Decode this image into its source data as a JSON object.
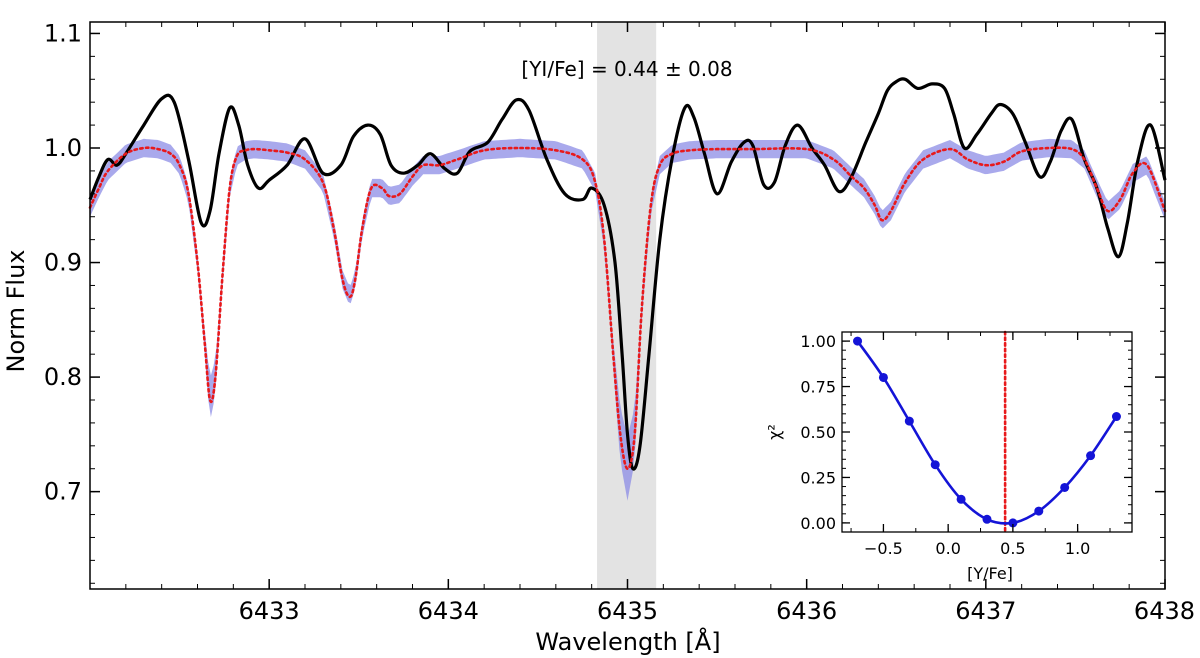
{
  "chart_data": [
    {
      "type": "line",
      "title": "",
      "xlabel": "Wavelength [Å]",
      "ylabel": "Norm Flux",
      "xlim": [
        6432.0,
        6438.0
      ],
      "ylim": [
        0.615,
        1.11
      ],
      "xticks": [
        6433,
        6434,
        6435,
        6436,
        6437,
        6438
      ],
      "xtick_labels": [
        "6433",
        "6434",
        "6435",
        "6436",
        "6437",
        "6438"
      ],
      "yticks": [
        0.7,
        0.8,
        0.9,
        1.0,
        1.1
      ],
      "ytick_labels": [
        "0.7",
        "0.8",
        "0.9",
        "1.0",
        "1.1"
      ],
      "annotation": "[YI/Fe] = 0.44 ± 0.08",
      "highlight_region": {
        "x_start": 6434.83,
        "x_end": 6435.16
      },
      "colors": {
        "observed": "#000000",
        "model": "#e8191b",
        "band": "#8c8ce6",
        "region": "#e3e3e3"
      },
      "series": [
        {
          "name": "observed spectrum",
          "style": "solid-black",
          "x": [
            6432.0,
            6432.05,
            6432.1,
            6432.15,
            6432.2,
            6432.3,
            6432.4,
            6432.47,
            6432.55,
            6432.62,
            6432.67,
            6432.72,
            6432.78,
            6432.83,
            6432.88,
            6432.94,
            6433.0,
            6433.1,
            6433.2,
            6433.3,
            6433.4,
            6433.47,
            6433.55,
            6433.62,
            6433.68,
            6433.75,
            6433.83,
            6433.9,
            6433.98,
            6434.05,
            6434.12,
            6434.22,
            6434.3,
            6434.38,
            6434.45,
            6434.55,
            6434.65,
            6434.75,
            6434.8,
            6434.87,
            6434.93,
            6434.97,
            6435.0,
            6435.03,
            6435.07,
            6435.12,
            6435.18,
            6435.25,
            6435.32,
            6435.37,
            6435.43,
            6435.5,
            6435.58,
            6435.65,
            6435.7,
            6435.76,
            6435.82,
            6435.88,
            6435.95,
            6436.03,
            6436.1,
            6436.18,
            6436.25,
            6436.33,
            6436.4,
            6436.45,
            6436.5,
            6436.55,
            6436.62,
            6436.7,
            6436.77,
            6436.82,
            6436.88,
            6436.95,
            6437.03,
            6437.08,
            6437.15,
            6437.22,
            6437.3,
            6437.36,
            6437.42,
            6437.48,
            6437.55,
            6437.62,
            6437.68,
            6437.74,
            6437.79,
            6437.85,
            6437.92,
            6438.0
          ],
          "y": [
            0.955,
            0.975,
            0.99,
            0.985,
            0.995,
            1.02,
            1.043,
            1.04,
            0.99,
            0.935,
            0.945,
            0.995,
            1.035,
            1.02,
            0.985,
            0.965,
            0.972,
            0.985,
            1.008,
            0.978,
            0.985,
            1.01,
            1.02,
            1.012,
            0.985,
            0.978,
            0.985,
            0.995,
            0.982,
            0.978,
            0.997,
            1.005,
            1.025,
            1.042,
            1.033,
            0.99,
            0.96,
            0.955,
            0.965,
            0.95,
            0.9,
            0.82,
            0.75,
            0.72,
            0.74,
            0.82,
            0.92,
            0.992,
            1.035,
            1.027,
            0.995,
            0.96,
            0.988,
            1.005,
            1.002,
            0.968,
            0.97,
            1.002,
            1.02,
            1.0,
            0.985,
            0.962,
            0.975,
            1.005,
            1.03,
            1.05,
            1.058,
            1.06,
            1.052,
            1.056,
            1.052,
            1.03,
            1.0,
            1.012,
            1.03,
            1.038,
            1.03,
            1.005,
            0.975,
            0.988,
            1.015,
            1.025,
            0.99,
            0.965,
            0.93,
            0.905,
            0.935,
            0.99,
            1.02,
            0.972
          ]
        },
        {
          "name": "best-fit synthesis",
          "style": "dotted-red",
          "x": [
            6432.0,
            6432.05,
            6432.1,
            6432.2,
            6432.3,
            6432.38,
            6432.45,
            6432.5,
            6432.55,
            6432.6,
            6432.64,
            6432.67,
            6432.7,
            6432.74,
            6432.78,
            6432.82,
            6432.87,
            6432.92,
            6433.0,
            6433.1,
            6433.2,
            6433.3,
            6433.36,
            6433.41,
            6433.45,
            6433.48,
            6433.52,
            6433.57,
            6433.63,
            6433.67,
            6433.73,
            6433.8,
            6433.86,
            6433.95,
            6434.05,
            6434.2,
            6434.4,
            6434.6,
            6434.75,
            6434.82,
            6434.87,
            6434.92,
            6434.96,
            6435.0,
            6435.04,
            6435.08,
            6435.13,
            6435.18,
            6435.25,
            6435.35,
            6435.5,
            6435.7,
            6436.0,
            6436.15,
            6436.25,
            6436.32,
            6436.38,
            6436.42,
            6436.47,
            6436.55,
            6436.65,
            6436.8,
            6436.9,
            6437.0,
            6437.1,
            6437.2,
            6437.35,
            6437.48,
            6437.55,
            6437.62,
            6437.68,
            6437.75,
            6437.82,
            6437.9,
            6438.0
          ],
          "y": [
            0.948,
            0.965,
            0.98,
            0.995,
            1.0,
            0.999,
            0.995,
            0.985,
            0.96,
            0.9,
            0.83,
            0.78,
            0.8,
            0.89,
            0.965,
            0.993,
            0.998,
            0.999,
            0.998,
            0.996,
            0.99,
            0.97,
            0.93,
            0.885,
            0.87,
            0.885,
            0.93,
            0.965,
            0.965,
            0.958,
            0.96,
            0.975,
            0.985,
            0.985,
            0.99,
            0.998,
            1.0,
            0.998,
            0.99,
            0.97,
            0.92,
            0.82,
            0.75,
            0.72,
            0.75,
            0.86,
            0.95,
            0.985,
            0.995,
            0.998,
            0.999,
            0.999,
            0.999,
            0.99,
            0.975,
            0.965,
            0.95,
            0.937,
            0.945,
            0.97,
            0.99,
            0.999,
            0.99,
            0.985,
            0.988,
            0.997,
            1.0,
            0.999,
            0.99,
            0.965,
            0.945,
            0.955,
            0.978,
            0.985,
            0.945
          ]
        }
      ],
      "uncertainty_band": {
        "name": "synthesis uncertainty",
        "half_width": 0.008,
        "core_half_width": 0.028
      }
    },
    {
      "type": "line",
      "inset": true,
      "title": "",
      "xlabel": "[Y/Fe]",
      "ylabel": "χ²",
      "xlim": [
        -0.82,
        1.42
      ],
      "ylim": [
        -0.05,
        1.05
      ],
      "xticks": [
        -0.5,
        0.0,
        0.5,
        1.0
      ],
      "xtick_labels": [
        "−0.5",
        "0.0",
        "0.5",
        "1.0"
      ],
      "yticks": [
        0.0,
        0.25,
        0.5,
        0.75,
        1.0
      ],
      "ytick_labels": [
        "0.00",
        "0.25",
        "0.50",
        "0.75",
        "1.00"
      ],
      "best_fit_line": 0.44,
      "colors": {
        "curve": "#1414d7",
        "marker": "#1414d7",
        "best_fit": "#e8191b"
      },
      "series": [
        {
          "name": "chi2",
          "x": [
            -0.7,
            -0.5,
            -0.3,
            -0.1,
            0.1,
            0.3,
            0.5,
            0.7,
            0.9,
            1.1,
            1.3
          ],
          "y": [
            1.0,
            0.8,
            0.56,
            0.32,
            0.13,
            0.02,
            0.0,
            0.065,
            0.195,
            0.37,
            0.585
          ]
        }
      ]
    }
  ]
}
